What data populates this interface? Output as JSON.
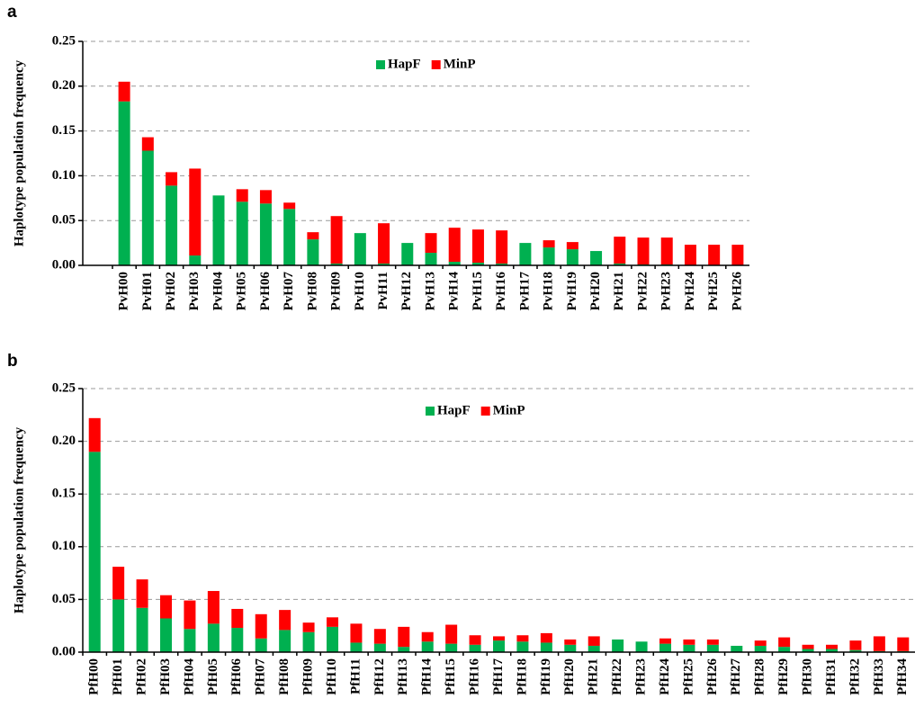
{
  "chart_data": [
    {
      "type": "bar",
      "stacked": true,
      "panel_label": "a",
      "ylabel": "Haplotype population frequency",
      "categories": [
        "PvH00",
        "PvH01",
        "PvH02",
        "PvH03",
        "PvH04",
        "PvH05",
        "PvH06",
        "PvH07",
        "PvH08",
        "PvH09",
        "PvH10",
        "PvH11",
        "PvH12",
        "PvH13",
        "PvH14",
        "PvH15",
        "PvH16",
        "PvH17",
        "PvH18",
        "PvH19",
        "PvH20",
        "PvH21",
        "PvH22",
        "PvH23",
        "PvH24",
        "PvH25",
        "PvH26"
      ],
      "series": [
        {
          "name": "HapF",
          "color": "#00b050",
          "values": [
            0.183,
            0.128,
            0.089,
            0.011,
            0.078,
            0.071,
            0.069,
            0.063,
            0.029,
            0.002,
            0.036,
            0.002,
            0.025,
            0.014,
            0.004,
            0.003,
            0.002,
            0.025,
            0.02,
            0.018,
            0.016,
            0.002,
            0.001,
            0.001,
            0,
            0,
            0
          ]
        },
        {
          "name": "MinP",
          "color": "#ff0000",
          "values": [
            0.022,
            0.015,
            0.015,
            0.097,
            0,
            0.014,
            0.015,
            0.007,
            0.008,
            0.053,
            0,
            0.045,
            0,
            0.022,
            0.038,
            0.037,
            0.037,
            0,
            0.008,
            0.008,
            0,
            0.03,
            0.03,
            0.03,
            0.023,
            0.023,
            0.023
          ]
        }
      ],
      "ylim": [
        0,
        0.25
      ],
      "yticks": [
        {
          "value": 0,
          "label": "0.00"
        },
        {
          "value": 0.05,
          "label": "0.05"
        },
        {
          "value": 0.1,
          "label": "0.10"
        },
        {
          "value": 0.15,
          "label": "0.15"
        },
        {
          "value": 0.2,
          "label": "0.20"
        },
        {
          "value": 0.25,
          "label": "0.25"
        }
      ],
      "grid": true,
      "legend": "top"
    },
    {
      "type": "bar",
      "stacked": true,
      "panel_label": "b",
      "ylabel": "Haplotype population frequency",
      "categories": [
        "PfH00",
        "PfH01",
        "PfH02",
        "PfH03",
        "PfH04",
        "PfH05",
        "PfH06",
        "PfH07",
        "PfH08",
        "PfH09",
        "PfH10",
        "PfH11",
        "PfH12",
        "PfH13",
        "PfH14",
        "PfH15",
        "PfH16",
        "PfH17",
        "PfH18",
        "PfH19",
        "PfH20",
        "PfH21",
        "PfH22",
        "PfH23",
        "PfH24",
        "PfH25",
        "PfH26",
        "PfH27",
        "PfH28",
        "PfH29",
        "PfH30",
        "PfH31",
        "PfH32",
        "PfH33",
        "PfH34"
      ],
      "series": [
        {
          "name": "HapF",
          "color": "#00b050",
          "values": [
            0.19,
            0.05,
            0.042,
            0.032,
            0.022,
            0.027,
            0.023,
            0.013,
            0.021,
            0.019,
            0.024,
            0.009,
            0.008,
            0.005,
            0.01,
            0.008,
            0.007,
            0.011,
            0.01,
            0.009,
            0.007,
            0.006,
            0.012,
            0.01,
            0.008,
            0.007,
            0.007,
            0.006,
            0.006,
            0.005,
            0.003,
            0.003,
            0.002,
            0.001,
            0.001
          ]
        },
        {
          "name": "MinP",
          "color": "#ff0000",
          "values": [
            0.032,
            0.031,
            0.027,
            0.022,
            0.027,
            0.031,
            0.018,
            0.023,
            0.019,
            0.009,
            0.009,
            0.018,
            0.014,
            0.019,
            0.009,
            0.018,
            0.009,
            0.004,
            0.006,
            0.009,
            0.005,
            0.009,
            0,
            0,
            0.005,
            0.005,
            0.005,
            0,
            0.005,
            0.009,
            0.004,
            0.004,
            0.009,
            0.014,
            0.013
          ]
        }
      ],
      "ylim": [
        0,
        0.25
      ],
      "yticks": [
        {
          "value": 0,
          "label": "0.00"
        },
        {
          "value": 0.05,
          "label": "0.05"
        },
        {
          "value": 0.1,
          "label": "0.10"
        },
        {
          "value": 0.15,
          "label": "0.15"
        },
        {
          "value": 0.2,
          "label": "0.20"
        },
        {
          "value": 0.25,
          "label": "0.25"
        }
      ],
      "grid": true,
      "legend": "top"
    }
  ]
}
